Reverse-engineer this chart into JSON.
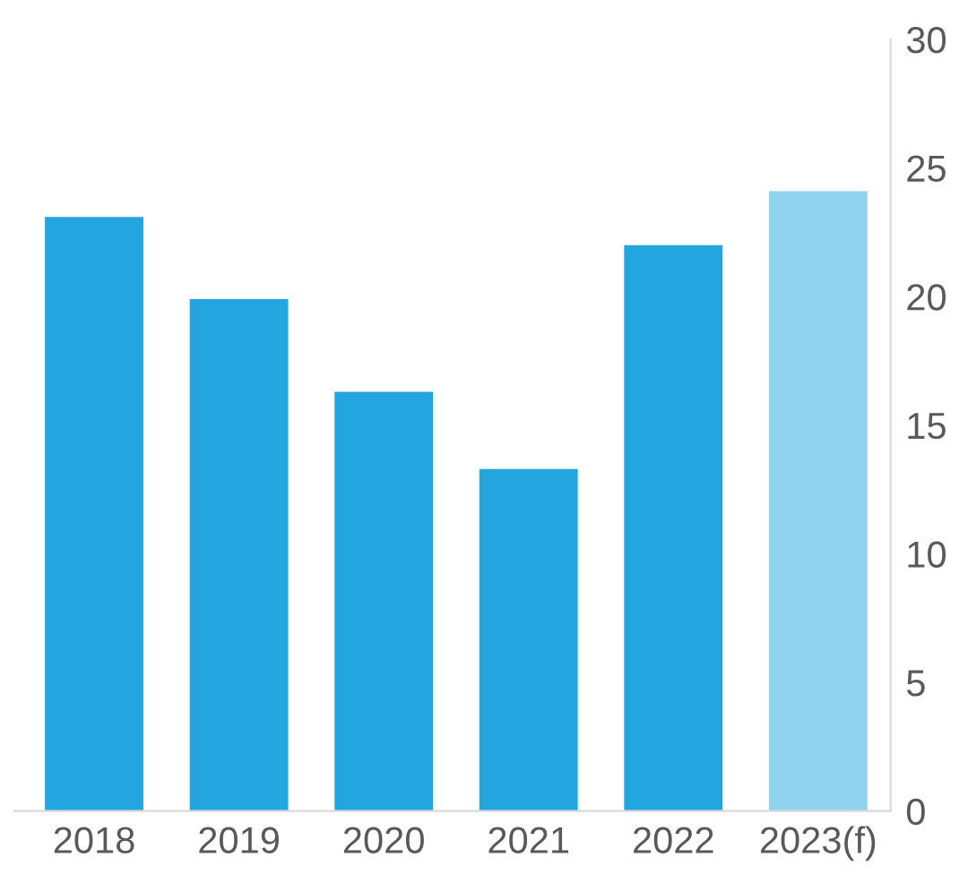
{
  "chart_data": {
    "type": "bar",
    "categories": [
      "2018",
      "2019",
      "2020",
      "2021",
      "2022",
      "2023(f)"
    ],
    "values": [
      23.1,
      19.9,
      16.3,
      13.3,
      22.0,
      24.1
    ],
    "colors": [
      "#23a6e0",
      "#23a6e0",
      "#23a6e0",
      "#23a6e0",
      "#23a6e0",
      "#91d2f0"
    ],
    "ylim": [
      0,
      30
    ],
    "yticks": [
      0,
      5,
      10,
      15,
      20,
      25,
      30
    ],
    "grid": false,
    "legend": false
  }
}
